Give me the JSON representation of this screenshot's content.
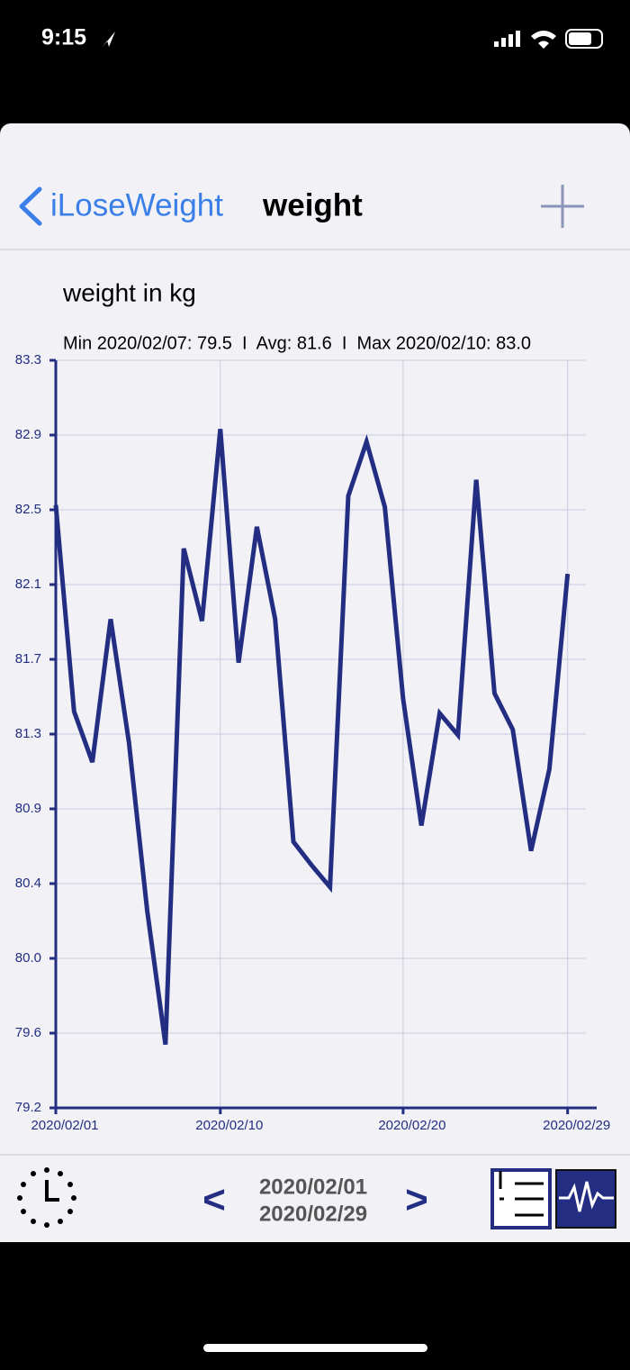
{
  "status": {
    "time": "9:15"
  },
  "nav": {
    "back": "iLoseWeight",
    "title": "weight"
  },
  "chart_data": {
    "type": "line",
    "title": "weight in kg",
    "subtitle": "Min 2020/02/07: 79.5  I  Avg: 81.6  I  Max 2020/02/10: 83.0",
    "x": [
      "2020/02/01",
      "2020/02/02",
      "2020/02/03",
      "2020/02/04",
      "2020/02/05",
      "2020/02/06",
      "2020/02/07",
      "2020/02/08",
      "2020/02/09",
      "2020/02/10",
      "2020/02/11",
      "2020/02/12",
      "2020/02/13",
      "2020/02/14",
      "2020/02/15",
      "2020/02/16",
      "2020/02/17",
      "2020/02/18",
      "2020/02/19",
      "2020/02/20",
      "2020/02/21",
      "2020/02/22",
      "2020/02/23",
      "2020/02/24",
      "2020/02/25",
      "2020/02/26",
      "2020/02/27",
      "2020/02/28",
      "2020/02/29"
    ],
    "values": [
      82.53,
      81.39,
      81.11,
      81.9,
      81.22,
      80.29,
      79.55,
      82.29,
      81.89,
      82.95,
      81.66,
      82.41,
      81.9,
      80.67,
      80.54,
      80.42,
      82.58,
      82.88,
      82.52,
      81.46,
      80.76,
      81.38,
      81.26,
      82.67,
      81.49,
      81.29,
      80.62,
      81.07,
      82.15
    ],
    "color": "#232e82",
    "xlim": [
      "2020/02/01",
      "2020/03/01"
    ],
    "xticks": [
      "2020/02/01",
      "2020/02/10",
      "2020/02/20",
      "2020/02/29"
    ],
    "ylim": [
      79.2,
      83.33
    ],
    "yticks": [
      {
        "value": 79.2,
        "label": "79.2"
      },
      {
        "value": 79.613,
        "label": "79.6"
      },
      {
        "value": 80.026,
        "label": "80.0"
      },
      {
        "value": 80.439,
        "label": "80.4"
      },
      {
        "value": 80.852,
        "label": "80.9"
      },
      {
        "value": 81.265,
        "label": "81.3"
      },
      {
        "value": 81.678,
        "label": "81.7"
      },
      {
        "value": 82.091,
        "label": "82.1"
      },
      {
        "value": 82.504,
        "label": "82.5"
      },
      {
        "value": 82.917,
        "label": "82.9"
      },
      {
        "value": 83.33,
        "label": "83.3"
      }
    ],
    "grid": true
  },
  "footer": {
    "prev": "<",
    "range_start": "2020/02/01",
    "range_end": "2020/02/29",
    "next": ">"
  }
}
